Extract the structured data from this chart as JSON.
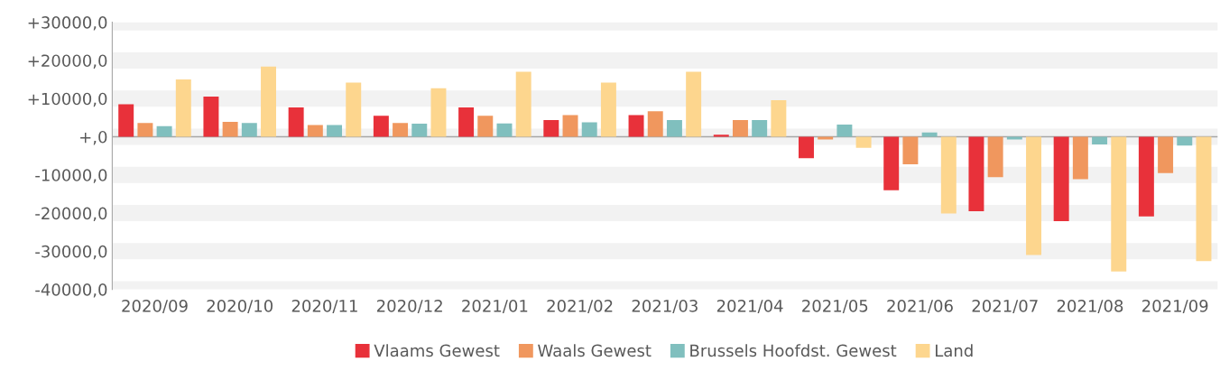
{
  "chart_data": {
    "type": "bar",
    "categories": [
      "2020/09",
      "2020/10",
      "2020/11",
      "2020/12",
      "2021/01",
      "2021/02",
      "2021/03",
      "2021/04",
      "2021/05",
      "2021/06",
      "2021/07",
      "2021/08",
      "2021/09"
    ],
    "series": [
      {
        "name": "Vlaams Gewest",
        "color": "#e8313a",
        "values": [
          8500,
          10500,
          7700,
          5500,
          7700,
          4400,
          5700,
          500,
          -5600,
          -14000,
          -19500,
          -22100,
          -20900
        ]
      },
      {
        "name": "Waals Gewest",
        "color": "#f0975e",
        "values": [
          3600,
          3900,
          3100,
          3600,
          5500,
          5700,
          6700,
          4400,
          -700,
          -7200,
          -10600,
          -11100,
          -9500
        ]
      },
      {
        "name": "Brussels Hoofdst. Gewest",
        "color": "#80bfbe",
        "values": [
          2800,
          3600,
          3100,
          3400,
          3500,
          3800,
          4400,
          4400,
          3200,
          1100,
          -700,
          -2000,
          -2300
        ]
      },
      {
        "name": "Land",
        "color": "#fdd68e",
        "values": [
          15000,
          18400,
          14200,
          12700,
          17000,
          14200,
          17000,
          9600,
          -2900,
          -20100,
          -31000,
          -35300,
          -32600
        ]
      }
    ],
    "ylim": [
      -40000,
      30000
    ],
    "yticks": [
      {
        "value": 30000,
        "label": "+30000,0"
      },
      {
        "value": 20000,
        "label": "+20000,0"
      },
      {
        "value": 10000,
        "label": "+10000,0"
      },
      {
        "value": 0,
        "label": "+,0"
      },
      {
        "value": -10000,
        "label": "-10000,0"
      },
      {
        "value": -20000,
        "label": "-20000,0"
      },
      {
        "value": -30000,
        "label": "-30000,0"
      },
      {
        "value": -40000,
        "label": "-40000,0"
      }
    ],
    "grid": "y",
    "legend": "bottom"
  }
}
